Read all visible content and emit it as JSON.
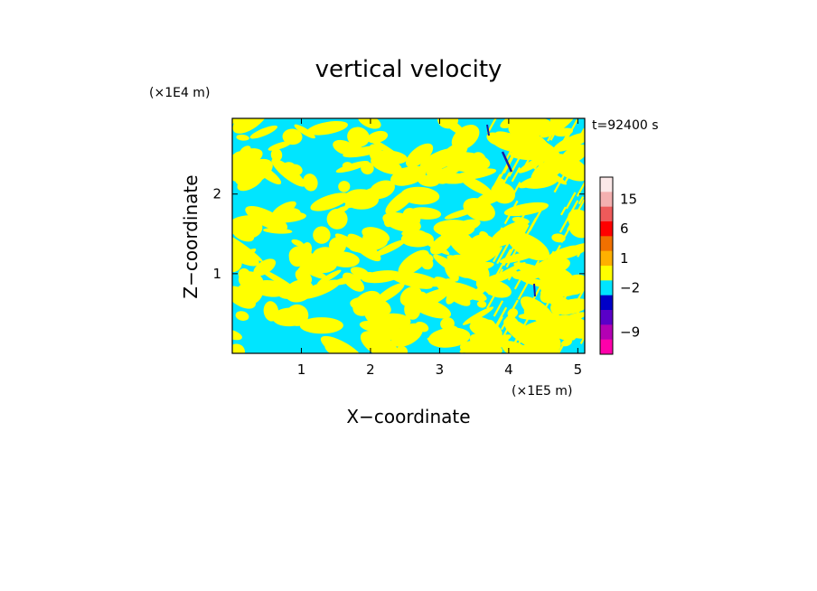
{
  "chart_data": {
    "type": "heatmap",
    "title": "vertical velocity",
    "xlabel": "X−coordinate",
    "ylabel": "Z−coordinate",
    "x_scale_label": "(×1E5 m)",
    "y_scale_label": "(×1E4 m)",
    "time_label": "t=92400 s",
    "xlim": [
      0.0,
      5.1
    ],
    "ylim": [
      0.0,
      2.95
    ],
    "x_ticks": [
      1,
      2,
      3,
      4,
      5
    ],
    "x_tick_labels": [
      "1",
      "2",
      "3",
      "4",
      "5"
    ],
    "y_ticks": [
      1,
      2
    ],
    "y_tick_labels": [
      "1",
      "2"
    ],
    "dominant_colors": {
      "positive_small": "#ffff00",
      "negative_small": "#00e5ff",
      "strong_negative": "#1a1aa0"
    },
    "colorbar": {
      "levels": [
        "",
        "15",
        "",
        "6",
        "",
        "1",
        "",
        "−2",
        "",
        "",
        "−9",
        ""
      ],
      "colors": [
        "#fbe8e8",
        "#f4b0b0",
        "#ee5a5a",
        "#ff0000",
        "#f07000",
        "#ffb000",
        "#ffff00",
        "#00e5ff",
        "#0000c8",
        "#5a00c8",
        "#b400b4",
        "#ff00aa"
      ],
      "tick_labels": [
        "15",
        "6",
        "1",
        "−2",
        "−9"
      ]
    }
  }
}
